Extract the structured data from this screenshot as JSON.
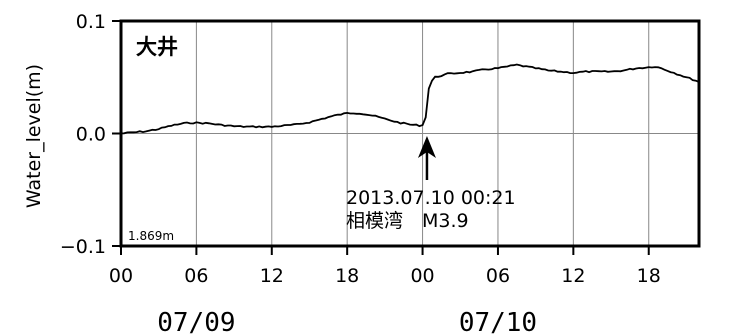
{
  "chart_data": {
    "type": "line",
    "ylabel": "Water_level(m)",
    "ylim": [
      -0.1,
      0.1
    ],
    "xlim_hours": [
      0,
      46
    ],
    "x_ticks": [
      {
        "hour": 0,
        "label": "00"
      },
      {
        "hour": 6,
        "label": "06"
      },
      {
        "hour": 12,
        "label": "12"
      },
      {
        "hour": 18,
        "label": "18"
      },
      {
        "hour": 24,
        "label": "00"
      },
      {
        "hour": 30,
        "label": "06"
      },
      {
        "hour": 36,
        "label": "12"
      },
      {
        "hour": 42,
        "label": "18"
      }
    ],
    "y_ticks": [
      {
        "value": 0.1,
        "label": "0.1"
      },
      {
        "value": 0.0,
        "label": "0.0"
      },
      {
        "value": -0.1,
        "label": "−0.1"
      }
    ],
    "dates": [
      {
        "hour": 6,
        "label": "07/09"
      },
      {
        "hour": 30,
        "label": "07/10"
      }
    ],
    "station": "大井",
    "reference": "1.869m",
    "grid": true,
    "annotation": {
      "hour": 24.35,
      "line1": "2013.07.10 00:21",
      "line2": "相模湾　M3.9"
    },
    "series": [
      {
        "x": [
          0,
          1,
          2,
          3,
          4,
          5,
          5.5,
          6,
          7,
          8,
          9,
          10,
          11,
          12,
          13,
          14,
          15,
          16,
          17,
          18,
          18.5,
          19,
          20,
          21,
          22,
          23,
          23.8,
          24.2,
          24.4,
          24.6,
          25,
          26,
          27,
          28,
          29,
          30,
          31,
          31.5,
          32,
          33,
          34,
          35,
          36,
          37,
          38,
          39,
          40,
          41,
          42,
          42.5,
          43,
          44,
          45,
          46
        ],
        "y": [
          0.0,
          0.001,
          0.002,
          0.004,
          0.007,
          0.009,
          0.0095,
          0.0095,
          0.009,
          0.0075,
          0.0065,
          0.006,
          0.006,
          0.006,
          0.007,
          0.008,
          0.01,
          0.013,
          0.016,
          0.018,
          0.0182,
          0.018,
          0.016,
          0.013,
          0.01,
          0.008,
          0.007,
          0.008,
          0.035,
          0.045,
          0.05,
          0.053,
          0.054,
          0.055,
          0.057,
          0.058,
          0.06,
          0.061,
          0.06,
          0.058,
          0.056,
          0.055,
          0.054,
          0.055,
          0.055,
          0.055,
          0.056,
          0.058,
          0.059,
          0.0595,
          0.058,
          0.054,
          0.05,
          0.046
        ]
      }
    ]
  }
}
